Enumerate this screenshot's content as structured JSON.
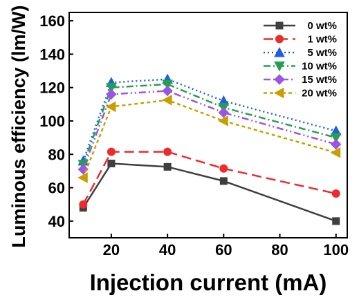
{
  "chart_data": {
    "type": "line",
    "xlabel": "Injection current (mA)",
    "ylabel": "Luminous efficiency (lm/W)",
    "xlim": [
      5,
      104
    ],
    "ylim": [
      30,
      165
    ],
    "xticks": [
      20,
      40,
      60,
      80,
      100
    ],
    "yticks": [
      40,
      60,
      80,
      100,
      120,
      140,
      160
    ],
    "x": [
      10,
      20,
      40,
      60,
      100
    ],
    "grid": false,
    "legend_position": "top-right",
    "series": [
      {
        "name": "0 wt%",
        "values": [
          48,
          74.5,
          72.5,
          64,
          40
        ],
        "color": "#3f3f3f",
        "marker": "square",
        "dash": "solid"
      },
      {
        "name": "1 wt%",
        "values": [
          50,
          81.5,
          81.5,
          71.5,
          56.5
        ],
        "color": "#ee2b2b",
        "marker": "circle",
        "dash": "long-dash"
      },
      {
        "name": "5 wt%",
        "values": [
          76,
          123,
          125,
          112,
          94
        ],
        "color": "#1f5fe0",
        "marker": "triangle-up",
        "dash": "dot"
      },
      {
        "name": "10 wt%",
        "values": [
          74,
          120,
          122,
          108,
          90
        ],
        "color": "#22a050",
        "marker": "triangle-down",
        "dash": "dash-dot"
      },
      {
        "name": "15 wt%",
        "values": [
          71,
          116,
          118,
          105,
          86
        ],
        "color": "#9b55e0",
        "marker": "diamond",
        "dash": "dash-dot-dot"
      },
      {
        "name": "20 wt%",
        "values": [
          66,
          108.5,
          112.5,
          100,
          81
        ],
        "color": "#c7a000",
        "marker": "triangle-left",
        "dash": "short-dash"
      }
    ]
  }
}
